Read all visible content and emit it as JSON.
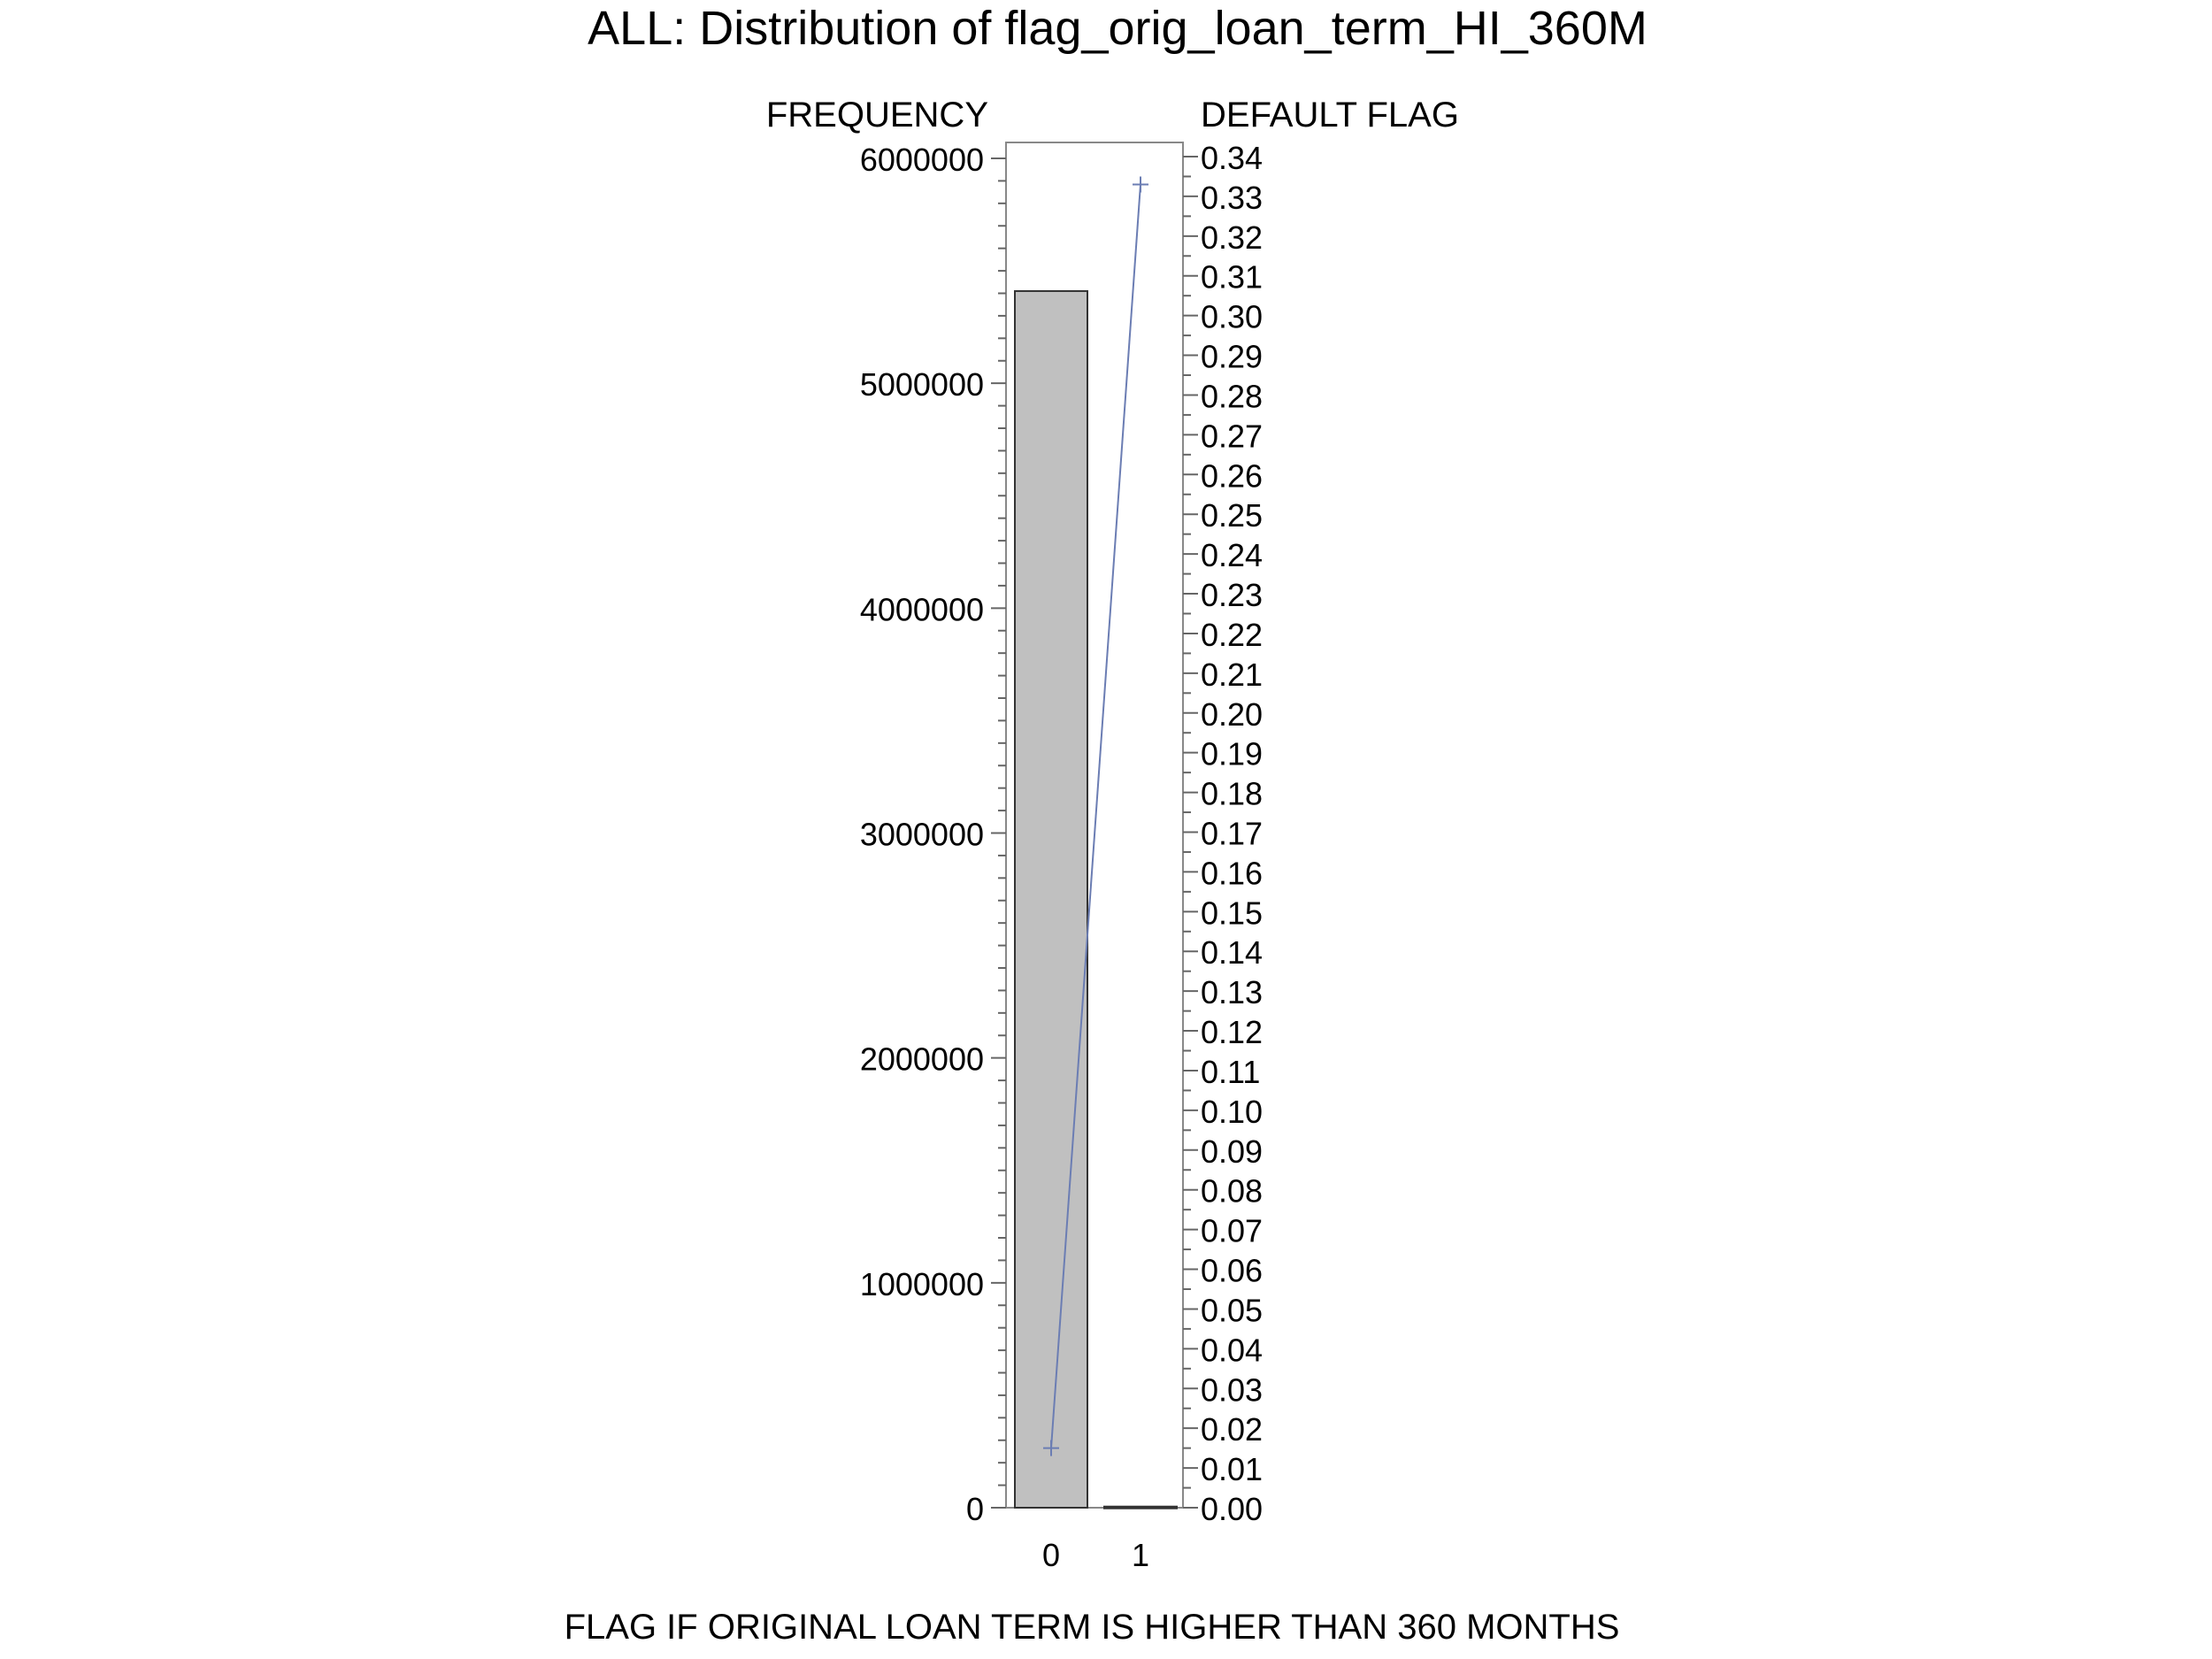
{
  "chart_data": {
    "type": "bar",
    "title": "ALL: Distribution of flag_orig_loan_term_HI_360M",
    "xlabel": "FLAG IF ORIGINAL LOAN TERM IS HIGHER THAN 360 MONTHS",
    "ylabel": "FREQUENCY",
    "y2label": "DEFAULT FLAG",
    "categories": [
      "0",
      "1"
    ],
    "series": [
      {
        "kind": "bar",
        "axis": "left",
        "values": [
          5410000,
          5000
        ],
        "color": "#c0c0c0"
      },
      {
        "kind": "line",
        "axis": "right",
        "values": [
          0.015,
          0.333
        ],
        "color": "#6b7db3",
        "marker": "plus"
      }
    ],
    "ylim": [
      0,
      6000000
    ],
    "y2lim": [
      0,
      0.34
    ],
    "yticks": [
      "0",
      "1000000",
      "2000000",
      "3000000",
      "4000000",
      "5000000",
      "6000000"
    ],
    "y2ticks": [
      "0.00",
      "0.01",
      "0.02",
      "0.03",
      "0.04",
      "0.05",
      "0.06",
      "0.07",
      "0.08",
      "0.09",
      "0.10",
      "0.11",
      "0.12",
      "0.13",
      "0.14",
      "0.15",
      "0.16",
      "0.17",
      "0.18",
      "0.19",
      "0.20",
      "0.21",
      "0.22",
      "0.23",
      "0.24",
      "0.25",
      "0.26",
      "0.27",
      "0.28",
      "0.29",
      "0.30",
      "0.31",
      "0.32",
      "0.33",
      "0.34"
    ],
    "grid": false,
    "legend": "none"
  }
}
